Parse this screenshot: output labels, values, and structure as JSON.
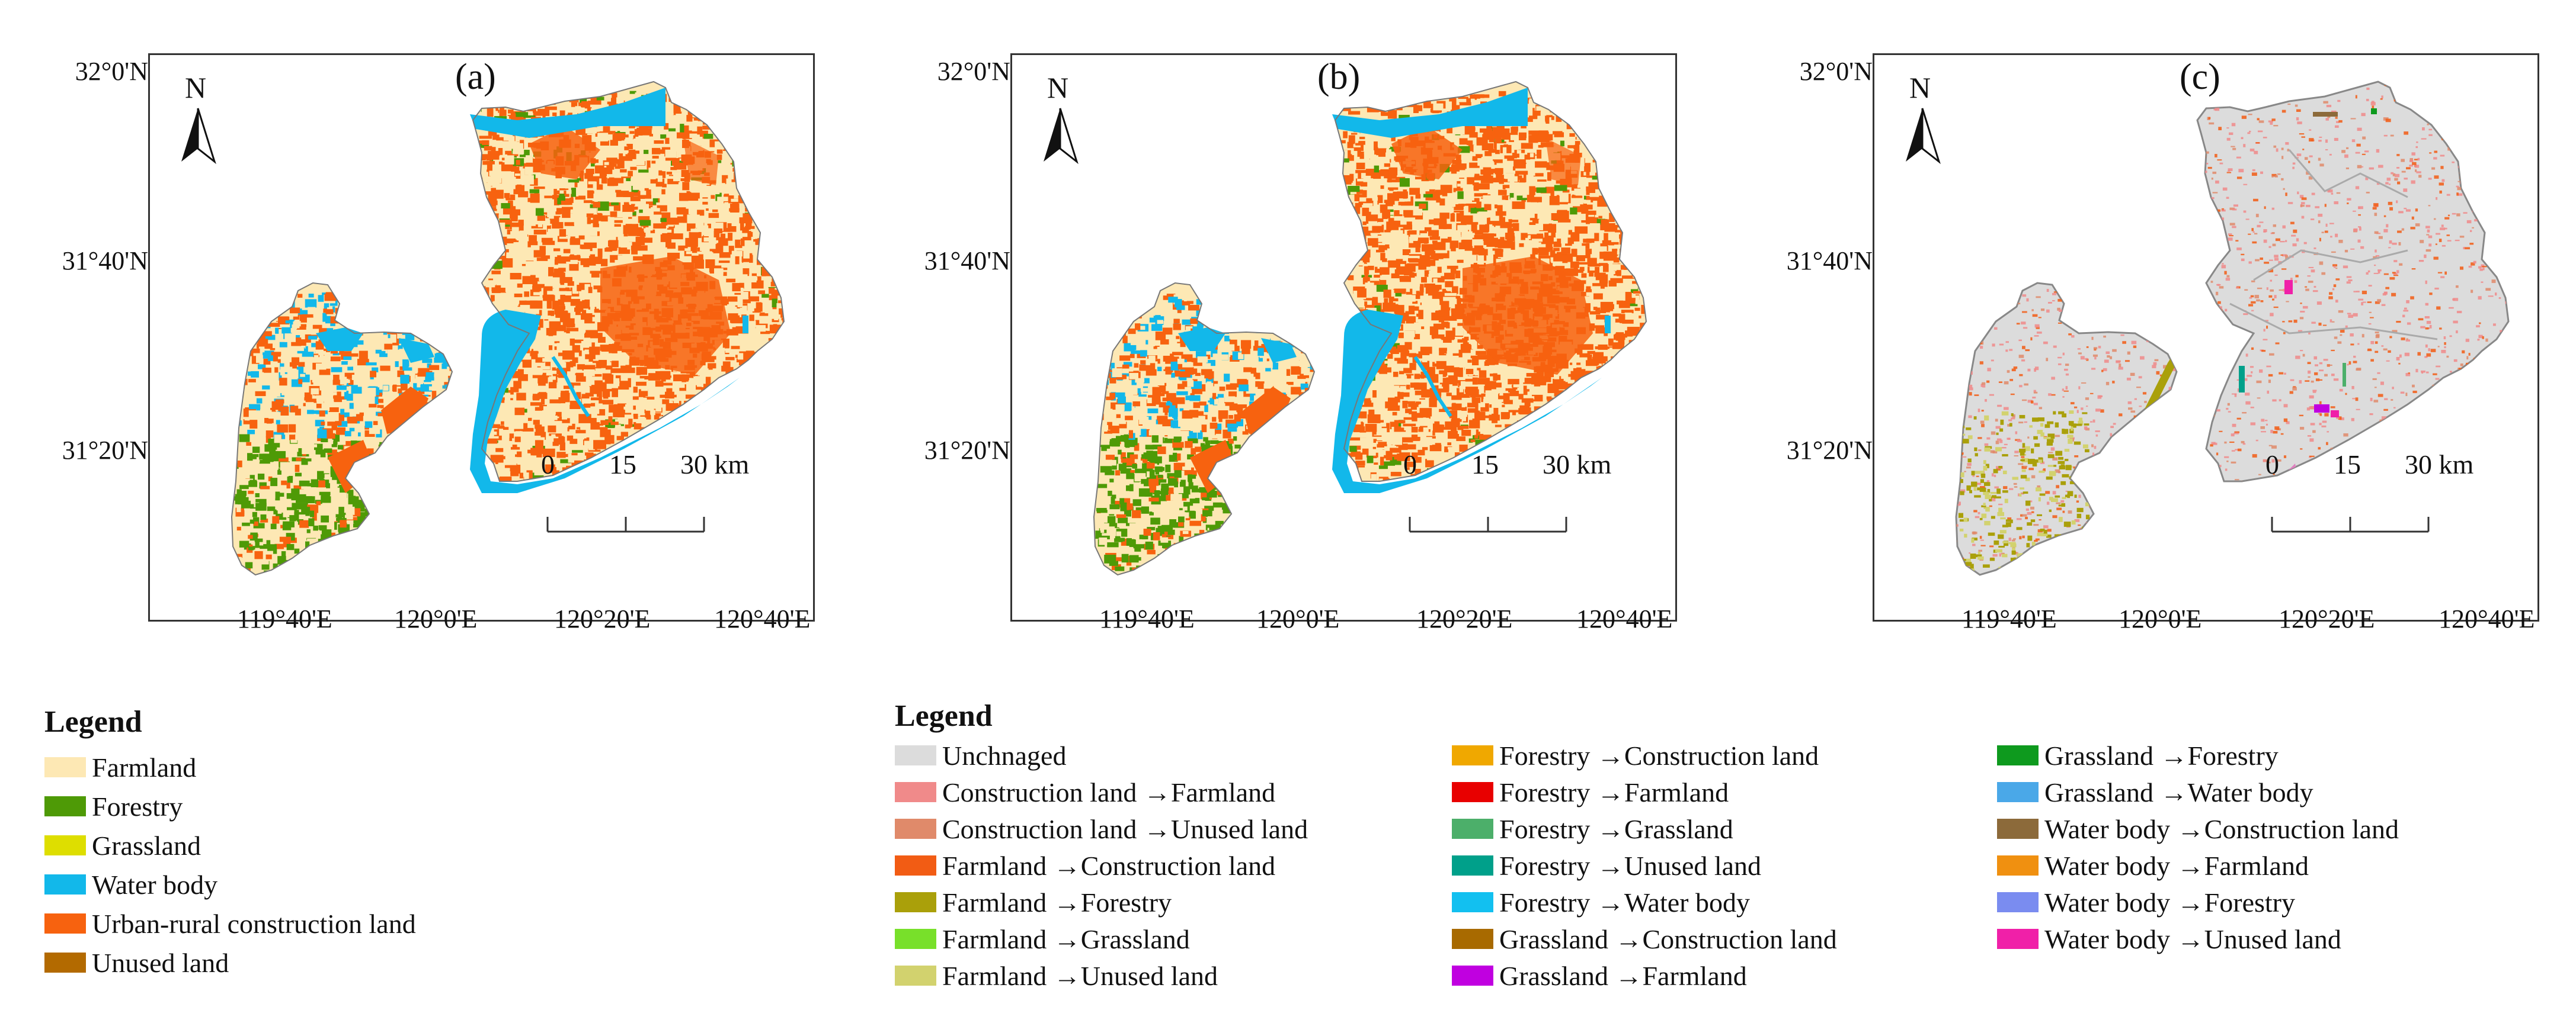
{
  "panels": [
    {
      "label": "(a)",
      "lat_labels": [
        "32°0'N",
        "31°40'N",
        "31°20'N"
      ],
      "lon_labels": [
        "119°40'E",
        "120°0'E",
        "120°20'E",
        "120°40'E"
      ],
      "north": "N",
      "scale": {
        "zero": "0",
        "mid": "15",
        "end": "30 km"
      }
    },
    {
      "label": "(b)",
      "lat_labels": [
        "32°0'N",
        "31°40'N",
        "31°20'N"
      ],
      "lon_labels": [
        "119°40'E",
        "120°0'E",
        "120°20'E",
        "120°40'E"
      ],
      "north": "N",
      "scale": {
        "zero": "0",
        "mid": "15",
        "end": "30 km"
      }
    },
    {
      "label": "(c)",
      "lat_labels": [
        "32°0'N",
        "31°40'N",
        "31°20'N"
      ],
      "lon_labels": [
        "119°40'E",
        "120°0'E",
        "120°20'E",
        "120°40'E"
      ],
      "north": "N",
      "scale": {
        "zero": "0",
        "mid": "15",
        "end": "30 km"
      }
    }
  ],
  "colors": {
    "farmland": "#fde8b4",
    "forestry": "#4e9a06",
    "grassland": "#dede00",
    "water": "#12b8ea",
    "construction": "#f7620f",
    "unused": "#b36a00",
    "unchanged": "#dcdcdc"
  },
  "legend1": {
    "title": "Legend",
    "items": [
      {
        "label": "Farmland",
        "color": "#fde8b4"
      },
      {
        "label": "Forestry",
        "color": "#4e9a06"
      },
      {
        "label": "Grassland",
        "color": "#dede00"
      },
      {
        "label": "Water body",
        "color": "#12b8ea"
      },
      {
        "label": "Urban-rural construction land",
        "color": "#f7620f"
      },
      {
        "label": "Unused land",
        "color": "#b36a00"
      }
    ]
  },
  "legend2": {
    "title": "Legend",
    "columns": [
      [
        {
          "label": "Unchnaged",
          "color": "#dcdcdc"
        },
        {
          "label": "Construction land →Farmland",
          "color": "#f08a8a"
        },
        {
          "label": "Construction land →Unused land",
          "color": "#e08a6a"
        },
        {
          "label": "Farmland →Construction land",
          "color": "#f25c14"
        },
        {
          "label": "Farmland →Forestry",
          "color": "#aaa00a"
        },
        {
          "label": "Farmland →Grassland",
          "color": "#78e02a"
        },
        {
          "label": "Farmland →Unused land",
          "color": "#d2d26e"
        }
      ],
      [
        {
          "label": "Forestry →Construction land",
          "color": "#f0a800"
        },
        {
          "label": "Forestry →Farmland",
          "color": "#e80000"
        },
        {
          "label": "Forestry →Grassland",
          "color": "#4caf6a"
        },
        {
          "label": "Forestry →Unused land",
          "color": "#00a08a"
        },
        {
          "label": "Forestry →Water body",
          "color": "#12c0f0"
        },
        {
          "label": "Grassland →Construction land",
          "color": "#a86a00"
        },
        {
          "label": "Grassland →Farmland",
          "color": "#c000e0"
        }
      ],
      [
        {
          "label": "Grassland →Forestry",
          "color": "#0e9a1e"
        },
        {
          "label": "Grassland →Water body",
          "color": "#4aa8e8"
        },
        {
          "label": "Water body →Construction land",
          "color": "#8c6a3a"
        },
        {
          "label": "Water body →Farmland",
          "color": "#f09010"
        },
        {
          "label": "Water body →Forestry",
          "color": "#7a8cf0"
        },
        {
          "label": "Water body →Unused land",
          "color": "#f020a8"
        }
      ]
    ]
  }
}
